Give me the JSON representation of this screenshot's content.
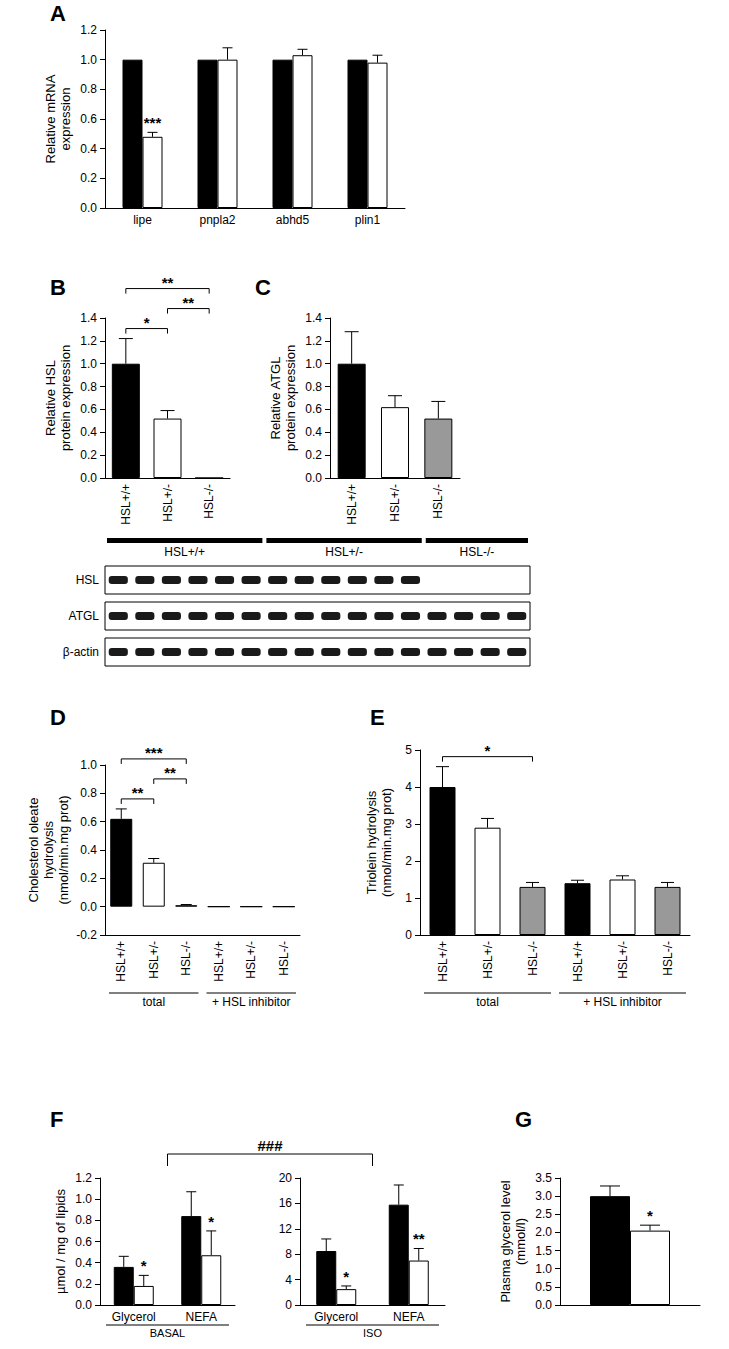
{
  "chart_data": [
    {
      "panel": "A",
      "type": "bar",
      "ylabel": "Relative mRNA\nexpression",
      "grid": false,
      "categories": [
        "lipe",
        "pnpla2",
        "abhd5",
        "plin1"
      ],
      "series": [
        {
          "color": "#000000",
          "values": [
            1,
            1,
            1,
            1
          ]
        },
        {
          "color": "#ffffff",
          "values": [
            0.48,
            1.0,
            1.03,
            0.98
          ],
          "errors": [
            0.03,
            0.08,
            0.04,
            0.05
          ]
        }
      ],
      "ylim": [
        0,
        1.2
      ],
      "yticks": [
        {
          "value": 0,
          "label": "0.0"
        },
        0.2,
        0.4,
        0.6,
        0.8,
        {
          "value": 1,
          "label": "1.0"
        },
        1.2
      ],
      "annotations": [
        {
          "category": 0,
          "series": 1,
          "text": "***"
        }
      ]
    },
    {
      "panel": "B",
      "type": "bar",
      "ylabel": "Relative HSL\nprotein expression",
      "grid": false,
      "categories": [
        "HSL+/+",
        "HSL+/-",
        "HSL-/-"
      ],
      "values": [
        1.0,
        0.52,
        0
      ],
      "errors": [
        0.22,
        0.07,
        0
      ],
      "colors": [
        "#000000",
        "#ffffff",
        "#ffffff"
      ],
      "ylim": [
        0,
        1.4
      ],
      "yticks": [
        {
          "value": 0,
          "label": "0.0"
        },
        0.2,
        0.4,
        0.6,
        0.8,
        {
          "value": 1,
          "label": "1.0"
        },
        1.2,
        1.4
      ],
      "brackets": [
        {
          "from": 0,
          "to": 1,
          "text": "*"
        },
        {
          "from": 1,
          "to": 2,
          "text": "**"
        },
        {
          "from": 0,
          "to": 2,
          "text": "**"
        }
      ]
    },
    {
      "panel": "C",
      "type": "bar",
      "ylabel": "Relative ATGL\nprotein expression",
      "grid": false,
      "categories": [
        "HSL+/+",
        "HSL+/-",
        "HSL-/-"
      ],
      "values": [
        1.0,
        0.62,
        0.52
      ],
      "errors": [
        0.28,
        0.1,
        0.15
      ],
      "colors": [
        "#000000",
        "#ffffff",
        "#999999"
      ],
      "ylim": [
        0,
        1.4
      ],
      "yticks": [
        {
          "value": 0,
          "label": "0.0"
        },
        0.2,
        0.4,
        0.6,
        0.8,
        {
          "value": 1,
          "label": "1.0"
        },
        1.2,
        1.4
      ]
    },
    {
      "type": "blot",
      "groups": [
        {
          "label": "HSL+/+",
          "lanes": 6
        },
        {
          "label": "HSL+/-",
          "lanes": 6
        },
        {
          "label": "HSL-/-",
          "lanes": 4
        }
      ],
      "rows": [
        {
          "label": "HSL",
          "present": [
            true,
            true,
            false
          ]
        },
        {
          "label": "ATGL",
          "present": [
            true,
            true,
            true
          ]
        },
        {
          "label": "β-actin",
          "present": [
            true,
            true,
            true
          ]
        }
      ]
    },
    {
      "panel": "D",
      "type": "bar",
      "ylabel": "Cholesterol oleate\nhydrolysis\n(nmol/min.mg prot)",
      "grid": false,
      "categories": [
        "HSL+/+",
        "HSL+/-",
        "HSL-/-",
        "HSL+/+",
        "HSL+/-",
        "HSL-/-"
      ],
      "values": [
        0.62,
        0.31,
        0.01,
        0,
        0,
        0
      ],
      "errors": [
        0.07,
        0.03,
        0.005,
        0,
        0,
        0
      ],
      "colors": [
        "#000000",
        "#ffffff",
        "#999999",
        "#000000",
        "#ffffff",
        "#999999"
      ],
      "ylim": [
        -0.2,
        1.0
      ],
      "yticks": [
        -0.2,
        {
          "value": 0,
          "label": "0.0"
        },
        0.2,
        0.4,
        0.6,
        0.8,
        {
          "value": 1,
          "label": "1.0"
        }
      ],
      "groups": [
        {
          "label": "total",
          "from": 0,
          "to": 2
        },
        {
          "label": "+ HSL inhibitor",
          "from": 3,
          "to": 5
        }
      ],
      "brackets": [
        {
          "from": 0,
          "to": 1,
          "text": "**"
        },
        {
          "from": 1,
          "to": 2,
          "text": "**"
        },
        {
          "from": 0,
          "to": 2,
          "text": "***"
        }
      ]
    },
    {
      "panel": "E",
      "type": "bar",
      "ylabel": "Triolein hydrolysis\n(nmol/min.mg prot)",
      "grid": false,
      "categories": [
        "HSL+/+",
        "HSL+/-",
        "HSL-/-",
        "HSL+/+",
        "HSL+/-",
        "HSL-/-"
      ],
      "values": [
        4.0,
        2.9,
        1.3,
        1.4,
        1.5,
        1.3
      ],
      "errors": [
        0.55,
        0.25,
        0.12,
        0.08,
        0.1,
        0.12
      ],
      "colors": [
        "#000000",
        "#ffffff",
        "#999999",
        "#000000",
        "#ffffff",
        "#999999"
      ],
      "ylim": [
        0,
        5
      ],
      "yticks": [
        0,
        1,
        2,
        3,
        4,
        5
      ],
      "groups": [
        {
          "label": "total",
          "from": 0,
          "to": 2
        },
        {
          "label": "+ HSL inhibitor",
          "from": 3,
          "to": 5
        }
      ],
      "brackets": [
        {
          "from": 0,
          "to": 2,
          "text": "*"
        }
      ]
    },
    {
      "panel": "F",
      "type": "bar",
      "ylabel": "µmol / mg of lipids",
      "grid": false,
      "bracket": "###",
      "subplots": [
        {
          "group_label": "BASAL",
          "categories": [
            "Glycerol",
            "NEFA"
          ],
          "series": [
            {
              "color": "#000000",
              "values": [
                0.36,
                0.84
              ],
              "errors": [
                0.1,
                0.23
              ]
            },
            {
              "color": "#ffffff",
              "values": [
                0.18,
                0.47
              ],
              "errors": [
                0.1,
                0.23
              ]
            }
          ],
          "ylim": [
            0,
            1.2
          ],
          "yticks": [
            {
              "value": 0,
              "label": "0.0"
            },
            0.2,
            0.4,
            0.6,
            0.8,
            {
              "value": 1,
              "label": "1.0"
            },
            1.2
          ],
          "annotations": [
            {
              "category": 0,
              "series": 1,
              "text": "*"
            },
            {
              "category": 1,
              "series": 1,
              "text": "*"
            }
          ]
        },
        {
          "group_label": "ISO",
          "categories": [
            "Glycerol",
            "NEFA"
          ],
          "series": [
            {
              "color": "#000000",
              "values": [
                8.5,
                15.8
              ],
              "errors": [
                1.9,
                3.1
              ]
            },
            {
              "color": "#ffffff",
              "values": [
                2.5,
                7.0
              ],
              "errors": [
                0.5,
                1.9
              ]
            }
          ],
          "ylim": [
            0,
            20
          ],
          "yticks": [
            0,
            4,
            8,
            12,
            16,
            20
          ],
          "annotations": [
            {
              "category": 0,
              "series": 1,
              "text": "*"
            },
            {
              "category": 1,
              "series": 1,
              "text": "**"
            }
          ]
        }
      ]
    },
    {
      "panel": "G",
      "type": "bar",
      "ylabel": "Plasma glycerol level\n(mmol/l)",
      "grid": false,
      "categories": [
        null
      ],
      "series": [
        {
          "color": "#000000",
          "values": [
            3.0
          ],
          "errors": [
            0.28
          ]
        },
        {
          "color": "#ffffff",
          "values": [
            2.05
          ],
          "errors": [
            0.15
          ]
        }
      ],
      "ylim": [
        0,
        3.5
      ],
      "yticks": [
        {
          "value": 0,
          "label": "0.0"
        },
        0.5,
        {
          "value": 1,
          "label": "1.0"
        },
        1.5,
        {
          "value": 2,
          "label": "2.0"
        },
        2.5,
        {
          "value": 3,
          "label": "3.0"
        },
        3.5
      ],
      "annotations": [
        {
          "category": 0,
          "series": 1,
          "text": "*"
        }
      ]
    }
  ]
}
